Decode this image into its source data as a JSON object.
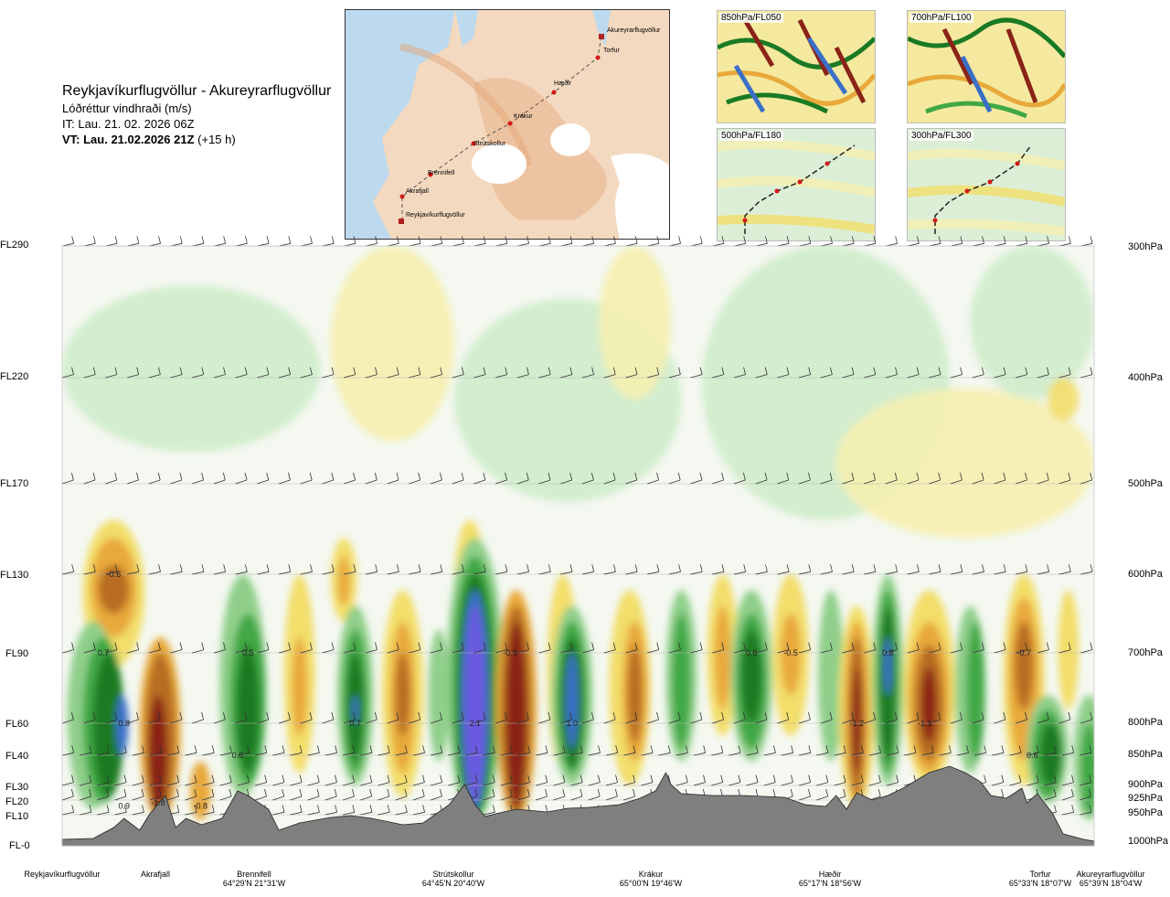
{
  "header": {
    "route": "Reykjavíkurflugvöllur - Akureyrarflugvöllur",
    "parameter": "Lóðréttur vindhraði (m/s)",
    "issue_time": "IT: Lau. 21. 02. 2026 06Z",
    "valid_time": "VT: Lau. 21.02.2026 21Z",
    "lead": "(+15 h)"
  },
  "route_map": {
    "labels": [
      "Akureyrarflugvöllur",
      "Torfur",
      "Hæðir",
      "Krákur",
      "Strútskollur",
      "Brennifell",
      "Akrafjall",
      "Reykjavíkurflugvöllur"
    ]
  },
  "level_maps": [
    {
      "label": "850hPa/FL050"
    },
    {
      "label": "700hPa/FL100"
    },
    {
      "label": "500hPa/FL180"
    },
    {
      "label": "300hPa/FL300"
    }
  ],
  "chart_data": {
    "type": "heatmap",
    "title": "Lóðréttur vindhraði (m/s)",
    "y_left_labels": [
      "FL290",
      "FL220",
      "FL170",
      "FL130",
      "FL90",
      "FL60",
      "FL40",
      "FL30",
      "FL20",
      "FL10",
      "FL-0"
    ],
    "y_right_labels": [
      "300hPa",
      "400hPa",
      "500hPa",
      "600hPa",
      "700hPa",
      "800hPa",
      "850hPa",
      "900hPa",
      "925hPa",
      "950hPa",
      "1000hPa"
    ],
    "pressure_levels_hPa": [
      300,
      400,
      500,
      600,
      700,
      800,
      850,
      900,
      925,
      950,
      1000
    ],
    "colors": {
      "strong_up": "#6a5ae0",
      "mod_up": "#3a6fc8",
      "up_3": "#1a7a24",
      "up_2": "#3fa844",
      "up_1": "#8fcf8a",
      "weak_up": "#cfeccb",
      "calm": "#f4f8f0",
      "weak_down": "#f6efb0",
      "down_1": "#f3de6a",
      "down_2": "#e8a93a",
      "down_3": "#b86d24",
      "down_4": "#8a2318",
      "terrain": "#7f7f7f"
    },
    "labeled_values": [
      {
        "text": "-0.6",
        "x": 0.05,
        "p": 600
      },
      {
        "text": "0.7",
        "x": 0.04,
        "p": 700
      },
      {
        "text": "0.8",
        "x": 0.06,
        "p": 800
      },
      {
        "text": "0.9",
        "x": 0.06,
        "p": 935
      },
      {
        "text": "-1.8",
        "x": 0.093,
        "p": 930
      },
      {
        "text": "-0.8",
        "x": 0.134,
        "p": 935
      },
      {
        "text": "0.5",
        "x": 0.18,
        "p": 700
      },
      {
        "text": "0.6",
        "x": 0.17,
        "p": 850
      },
      {
        "text": "0.7",
        "x": 0.284,
        "p": 800
      },
      {
        "text": "2.1",
        "x": 0.4,
        "p": 800
      },
      {
        "text": "-0.9",
        "x": 0.434,
        "p": 700
      },
      {
        "text": "1.0",
        "x": 0.494,
        "p": 800
      },
      {
        "text": "0.6",
        "x": 0.668,
        "p": 700
      },
      {
        "text": "-0.5",
        "x": 0.706,
        "p": 700
      },
      {
        "text": "-1.2",
        "x": 0.77,
        "p": 800
      },
      {
        "text": "0.8",
        "x": 0.8,
        "p": 700
      },
      {
        "text": "-1.1",
        "x": 0.836,
        "p": 800
      },
      {
        "text": "-0.7",
        "x": 0.932,
        "p": 700
      },
      {
        "text": "0.6",
        "x": 0.94,
        "p": 850
      }
    ],
    "stations": [
      {
        "name": "Reykjavíkurflugvöllur",
        "coord": ""
      },
      {
        "name": "Akrafjall",
        "coord": ""
      },
      {
        "name": "Brennifell",
        "coord": "64°29'N 21°31'W"
      },
      {
        "name": "Strútskollur",
        "coord": "64°45'N 20°40'W"
      },
      {
        "name": "Krákur",
        "coord": "65°00'N 19°46'W"
      },
      {
        "name": "Hæðir",
        "coord": "65°17'N 18°56'W"
      },
      {
        "name": "Torfur",
        "coord": "65°33'N 18°07'W"
      },
      {
        "name": "Akureyrarflugvöllur",
        "coord": "65°39'N 18°04'W"
      }
    ]
  }
}
